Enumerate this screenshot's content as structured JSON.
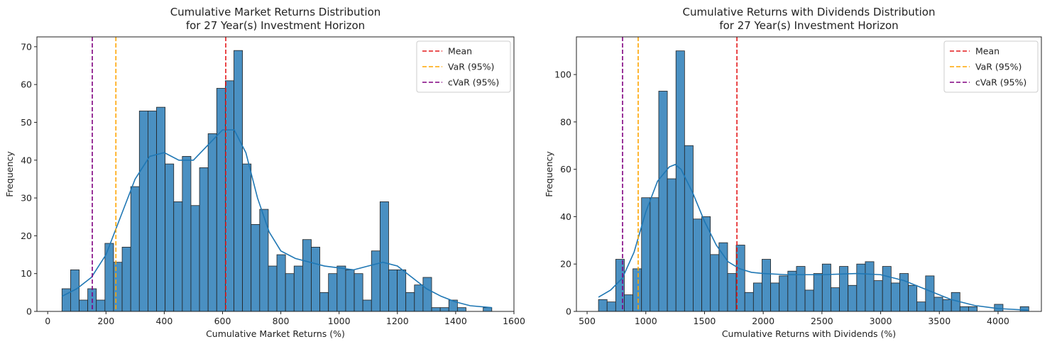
{
  "chart_data": [
    {
      "type": "histogram",
      "title": "Cumulative Market Returns Distribution\nfor 27 Year(s) Investment Horizon",
      "xlabel": "Cumulative Market Returns (%)",
      "ylabel": "Frequency",
      "bins": [
        49,
        78.5,
        108,
        137.5,
        167,
        196.5,
        226,
        255.5,
        285,
        314.5,
        344,
        373.5,
        403,
        432.5,
        462,
        491.5,
        521,
        550.5,
        580,
        609.5,
        639,
        668.5,
        698,
        727.5,
        757,
        786.5,
        816,
        845.5,
        875,
        904.5,
        934,
        963.5,
        993,
        1022.5,
        1052,
        1081.5,
        1111,
        1140.5,
        1170,
        1199.5,
        1229,
        1258.5,
        1288,
        1317.5,
        1347,
        1376.5,
        1406,
        1435.5,
        1465,
        1494.5,
        1524
      ],
      "counts": [
        6,
        11,
        3,
        6,
        3,
        18,
        13,
        17,
        33,
        53,
        53,
        54,
        39,
        29,
        41,
        28,
        38,
        47,
        59,
        61,
        69,
        39,
        23,
        27,
        12,
        15,
        10,
        12,
        19,
        17,
        5,
        10,
        12,
        11,
        10,
        3,
        16,
        29,
        11,
        11,
        5,
        7,
        9,
        1,
        1,
        3,
        1,
        0,
        0,
        1
      ],
      "color": "#4a90c2",
      "kde": {
        "color": "#1f77b4",
        "x": [
          49,
          100,
          150,
          200,
          250,
          300,
          350,
          400,
          450,
          500,
          550,
          600,
          640,
          680,
          720,
          760,
          800,
          850,
          900,
          950,
          1000,
          1050,
          1100,
          1150,
          1200,
          1250,
          1300,
          1350,
          1400,
          1450,
          1524
        ],
        "y": [
          4,
          6,
          9,
          15,
          25,
          35,
          41,
          42,
          40,
          40,
          44,
          48,
          48,
          42,
          30,
          21,
          16,
          14,
          13,
          12,
          11.5,
          11,
          12,
          13,
          12,
          9,
          6,
          4,
          2.5,
          1.5,
          1
        ]
      },
      "reference_lines": [
        {
          "name": "Mean",
          "color": "#e41a1c",
          "value": 611
        },
        {
          "name": "VaR (95%)",
          "color": "#ffa500",
          "value": 234
        },
        {
          "name": "cVaR (95%)",
          "color": "#800080",
          "value": 153
        }
      ],
      "legend": "upper right",
      "xlim": [
        -37,
        1600
      ],
      "ylim": [
        0,
        72.6
      ],
      "xticks": [
        0,
        200,
        400,
        600,
        800,
        1000,
        1200,
        1400,
        1600
      ],
      "yticks": [
        0,
        10,
        20,
        30,
        40,
        50,
        60,
        70
      ]
    },
    {
      "type": "histogram",
      "title": "Cumulative Returns with Dividends Distribution\nfor 27 Year(s) Investment Horizon",
      "xlabel": "Cumulative Returns with Dividends (%)",
      "ylabel": "Frequency",
      "bins": [
        597,
        670.3,
        743.6,
        816.9,
        890.2,
        963.5,
        1036.8,
        1110.1,
        1183.4,
        1256.7,
        1330,
        1403.3,
        1476.6,
        1549.9,
        1623.2,
        1696.5,
        1769.8,
        1843.1,
        1916.4,
        1989.7,
        2063,
        2136.3,
        2209.6,
        2282.9,
        2356.2,
        2429.5,
        2502.8,
        2576.1,
        2649.4,
        2722.7,
        2796,
        2869.3,
        2942.6,
        3015.9,
        3089.2,
        3162.5,
        3235.8,
        3309.1,
        3382.4,
        3455.7,
        3529,
        3602.3,
        3675.6,
        3748.9,
        3822.2,
        3895.5,
        3968.8,
        4042.1,
        4115.4,
        4188.7,
        4262
      ],
      "counts": [
        5,
        4,
        22,
        7,
        18,
        48,
        48,
        93,
        56,
        110,
        70,
        39,
        40,
        24,
        29,
        16,
        28,
        8,
        12,
        22,
        12,
        15,
        17,
        19,
        9,
        16,
        20,
        10,
        19,
        11,
        20,
        21,
        13,
        19,
        12,
        16,
        11,
        4,
        15,
        6,
        5,
        8,
        2,
        2,
        0,
        0,
        3,
        0,
        0,
        2
      ],
      "color": "#4a90c2",
      "kde": {
        "color": "#1f77b4",
        "x": [
          597,
          700,
          800,
          900,
          1000,
          1100,
          1200,
          1250,
          1300,
          1400,
          1500,
          1600,
          1700,
          1800,
          1900,
          2000,
          2200,
          2500,
          2800,
          3000,
          3200,
          3400,
          3600,
          3800,
          4000,
          4262
        ],
        "y": [
          6,
          9,
          14,
          25,
          42,
          55,
          61,
          62,
          60,
          50,
          38,
          28,
          21,
          18,
          16.5,
          16,
          15.5,
          15.5,
          16,
          15.5,
          13,
          9,
          5,
          2.5,
          1.2,
          0.5
        ]
      },
      "reference_lines": [
        {
          "name": "Mean",
          "color": "#e41a1c",
          "value": 1776
        },
        {
          "name": "VaR (95%)",
          "color": "#ffa500",
          "value": 935
        },
        {
          "name": "cVaR (95%)",
          "color": "#800080",
          "value": 802
        }
      ],
      "legend": "upper right",
      "xlim": [
        409,
        4369
      ],
      "ylim": [
        0,
        115.9
      ],
      "xticks": [
        500,
        1000,
        1500,
        2000,
        2500,
        3000,
        3500,
        4000
      ],
      "yticks": [
        0,
        20,
        40,
        60,
        80,
        100
      ]
    }
  ]
}
